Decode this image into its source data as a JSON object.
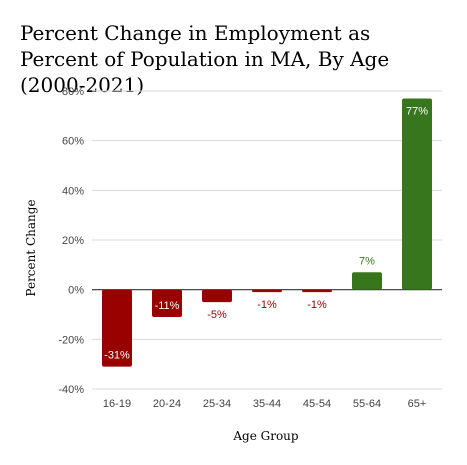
{
  "chart_data": {
    "type": "bar",
    "title": "Percent Change in Employment as Percent of Population in MA, By Age (2000-2021)",
    "xlabel": "Age Group",
    "ylabel": "Percent Change",
    "categories": [
      "16-19",
      "20-24",
      "25-34",
      "35-44",
      "45-54",
      "55-64",
      "65+"
    ],
    "values": [
      -31,
      -11,
      -5,
      -1,
      -1,
      7,
      77
    ],
    "data_labels": [
      "-31%",
      "-11%",
      "-5%",
      "-1%",
      "-1%",
      "7%",
      "77%"
    ],
    "ylim": [
      -40,
      80
    ],
    "yticks": [
      -40,
      -20,
      0,
      20,
      40,
      60,
      80
    ],
    "ytick_labels": [
      "-40%",
      "-20%",
      "0%",
      "20%",
      "40%",
      "60%",
      "80%"
    ],
    "grid": true,
    "colors": {
      "negative": "#990000",
      "positive": "#38761d",
      "grid": "#d9d9d9",
      "axis": "#333333"
    }
  }
}
